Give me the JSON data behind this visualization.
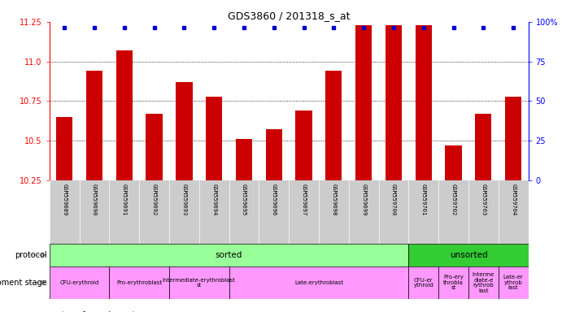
{
  "title": "GDS3860 / 201318_s_at",
  "samples": [
    "GSM559689",
    "GSM559690",
    "GSM559691",
    "GSM559692",
    "GSM559693",
    "GSM559694",
    "GSM559695",
    "GSM559696",
    "GSM559697",
    "GSM559698",
    "GSM559699",
    "GSM559700",
    "GSM559701",
    "GSM559702",
    "GSM559703",
    "GSM559704"
  ],
  "bar_values": [
    10.65,
    10.94,
    11.07,
    10.67,
    10.87,
    10.78,
    10.51,
    10.57,
    10.69,
    10.94,
    11.23,
    11.23,
    11.23,
    10.47,
    10.67,
    10.78
  ],
  "ylim_left": [
    10.25,
    11.25
  ],
  "ylim_right": [
    0,
    100
  ],
  "yticks_left": [
    10.25,
    10.5,
    10.75,
    11.0,
    11.25
  ],
  "yticks_right": [
    0,
    25,
    50,
    75,
    100
  ],
  "ytick_labels_right": [
    "0",
    "25",
    "50",
    "75",
    "100%"
  ],
  "bar_color": "#cc0000",
  "percentile_color": "#0000cc",
  "tick_bg_color": "#cccccc",
  "sorted_color": "#99ff99",
  "unsorted_color": "#33cc33",
  "dev_color": "#ff99ff",
  "protocol_groups": [
    {
      "label": "sorted",
      "start": 0,
      "end": 11,
      "color": "#99ff99"
    },
    {
      "label": "unsorted",
      "start": 12,
      "end": 15,
      "color": "#33cc33"
    }
  ],
  "dev_groups": [
    {
      "label": "CFU-erythroid",
      "start": 0,
      "end": 1
    },
    {
      "label": "Pro-erythroblast",
      "start": 2,
      "end": 3
    },
    {
      "label": "Intermediate-erythroblast\nst",
      "start": 4,
      "end": 5
    },
    {
      "label": "Late-erythroblast",
      "start": 6,
      "end": 11
    },
    {
      "label": "CFU-er\nythroid",
      "start": 12,
      "end": 12
    },
    {
      "label": "Pro-ery\nthrobla\nst",
      "start": 13,
      "end": 13
    },
    {
      "label": "Interme\ndiate-e\nrythrob\nlast",
      "start": 14,
      "end": 14
    },
    {
      "label": "Late-er\nythrob\nlast",
      "start": 15,
      "end": 15
    }
  ]
}
